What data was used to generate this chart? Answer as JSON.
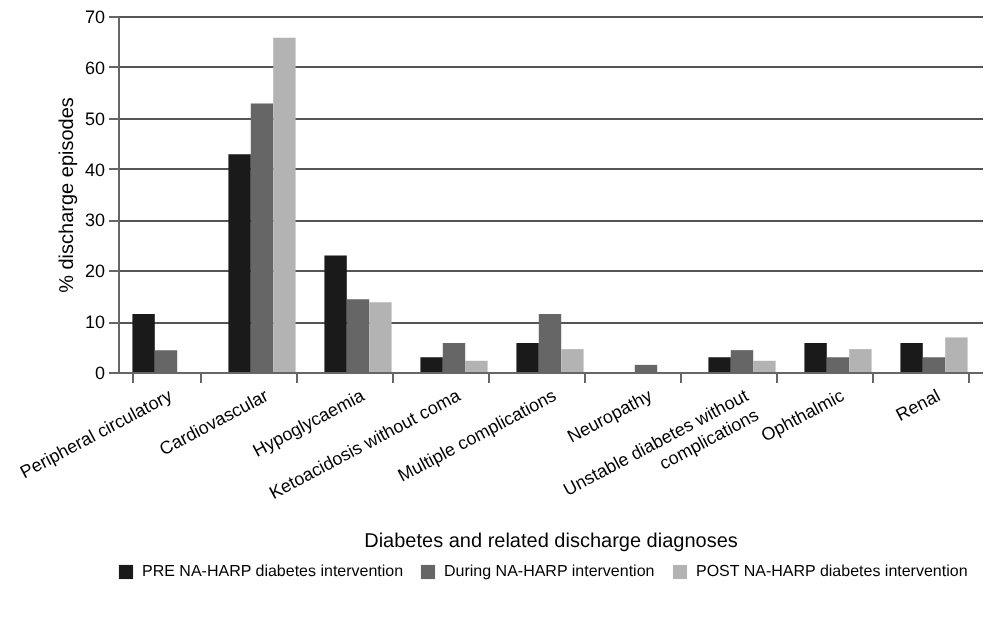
{
  "chart_data": {
    "type": "bar",
    "xlabel": "Diabetes and related discharge diagnoses",
    "ylabel": "% discharge episodes",
    "categories": [
      "Peripheral circulatory",
      "Cardiovascular",
      "Hypoglycaemia",
      "Ketoacidosis without coma",
      "Multiple complications",
      "Neuropathy",
      "Unstable diabetes without complications",
      "Ophthalmic",
      "Renal"
    ],
    "series": [
      {
        "name": "PRE NA-HARP diabetes intervention",
        "color": "#1a1a1a",
        "values": [
          11.4,
          42.8,
          22.9,
          2.9,
          5.7,
          0,
          2.9,
          5.7,
          5.7
        ]
      },
      {
        "name": "During NA-HARP intervention",
        "color": "#666666",
        "values": [
          4.3,
          52.8,
          14.3,
          5.7,
          11.4,
          1.4,
          4.3,
          2.9,
          2.9
        ]
      },
      {
        "name": "POST NA-HARP diabetes intervention",
        "color": "#b3b3b3",
        "values": [
          0,
          65.7,
          13.7,
          2.2,
          4.5,
          0,
          2.2,
          4.5,
          6.8
        ]
      }
    ],
    "ylim": [
      0,
      70
    ],
    "yticks": [
      0,
      10,
      20,
      30,
      40,
      50,
      60,
      70
    ],
    "grid": "y",
    "legend": "bottom"
  }
}
